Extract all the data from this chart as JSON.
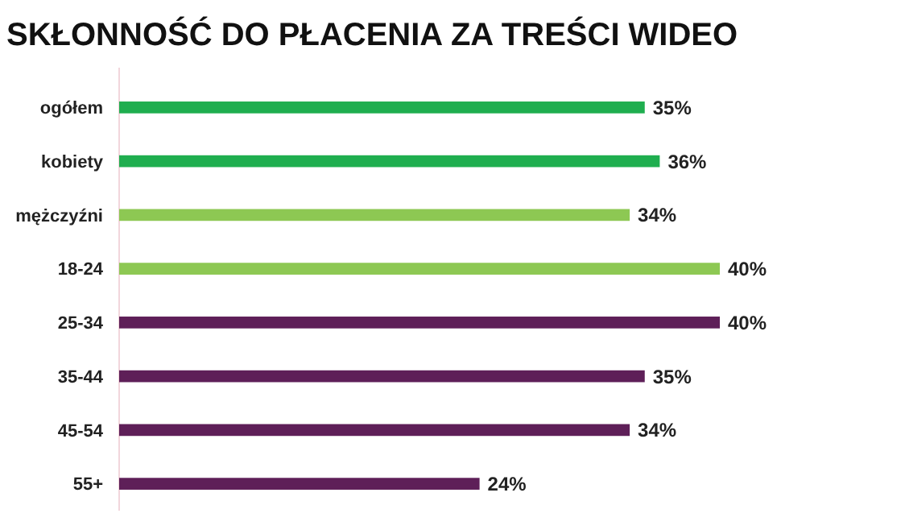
{
  "chart_data": {
    "type": "bar",
    "orientation": "horizontal",
    "title": "SKŁONNOŚĆ DO PŁACENIA ZA TREŚCI WIDEO",
    "categories": [
      "ogółem",
      "kobiety",
      "mężczyźni",
      "18-24",
      "25-34",
      "35-44",
      "45-54",
      "55+"
    ],
    "values": [
      35,
      36,
      34,
      40,
      40,
      35,
      34,
      24
    ],
    "colors": [
      "#1fae4f",
      "#1fae4f",
      "#8dc853",
      "#8dc853",
      "#5e1f58",
      "#5e1f58",
      "#5e1f58",
      "#5e1f58"
    ],
    "value_labels": [
      "35%",
      "36%",
      "34%",
      "40%",
      "40%",
      "35%",
      "34%",
      "24%"
    ]
  }
}
